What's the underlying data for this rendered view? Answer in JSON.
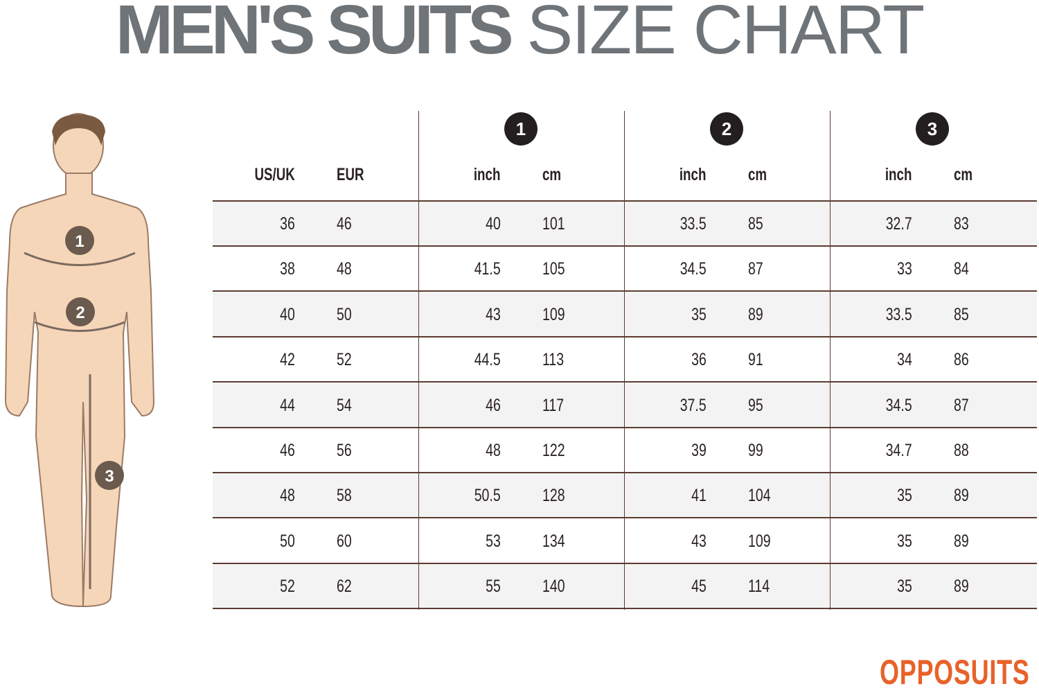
{
  "title": {
    "bold": "MEN'S SUITS",
    "light": "SIZE CHART"
  },
  "figure": {
    "markers": [
      "1",
      "2",
      "3"
    ]
  },
  "table": {
    "size_headers": [
      "US/UK",
      "EUR"
    ],
    "groups": [
      {
        "badge": "1",
        "units": [
          "inch",
          "cm"
        ]
      },
      {
        "badge": "2",
        "units": [
          "inch",
          "cm"
        ]
      },
      {
        "badge": "3",
        "units": [
          "inch",
          "cm"
        ]
      }
    ],
    "rows": [
      [
        "36",
        "46",
        "40",
        "101",
        "33.5",
        "85",
        "32.7",
        "83"
      ],
      [
        "38",
        "48",
        "41.5",
        "105",
        "34.5",
        "87",
        "33",
        "84"
      ],
      [
        "40",
        "50",
        "43",
        "109",
        "35",
        "89",
        "33.5",
        "85"
      ],
      [
        "42",
        "52",
        "44.5",
        "113",
        "36",
        "91",
        "34",
        "86"
      ],
      [
        "44",
        "54",
        "46",
        "117",
        "37.5",
        "95",
        "34.5",
        "87"
      ],
      [
        "46",
        "56",
        "48",
        "122",
        "39",
        "99",
        "34.7",
        "88"
      ],
      [
        "48",
        "58",
        "50.5",
        "128",
        "41",
        "104",
        "35",
        "89"
      ],
      [
        "50",
        "60",
        "53",
        "134",
        "43",
        "109",
        "35",
        "89"
      ],
      [
        "52",
        "62",
        "55",
        "140",
        "45",
        "114",
        "35",
        "89"
      ]
    ]
  },
  "logo": "OPPOSUITS",
  "colors": {
    "title": "#6f7479",
    "logo": "#e8622a",
    "lines": "#5a3a30",
    "skin": "#f6d6b8",
    "marker": "#6b5a4e"
  }
}
